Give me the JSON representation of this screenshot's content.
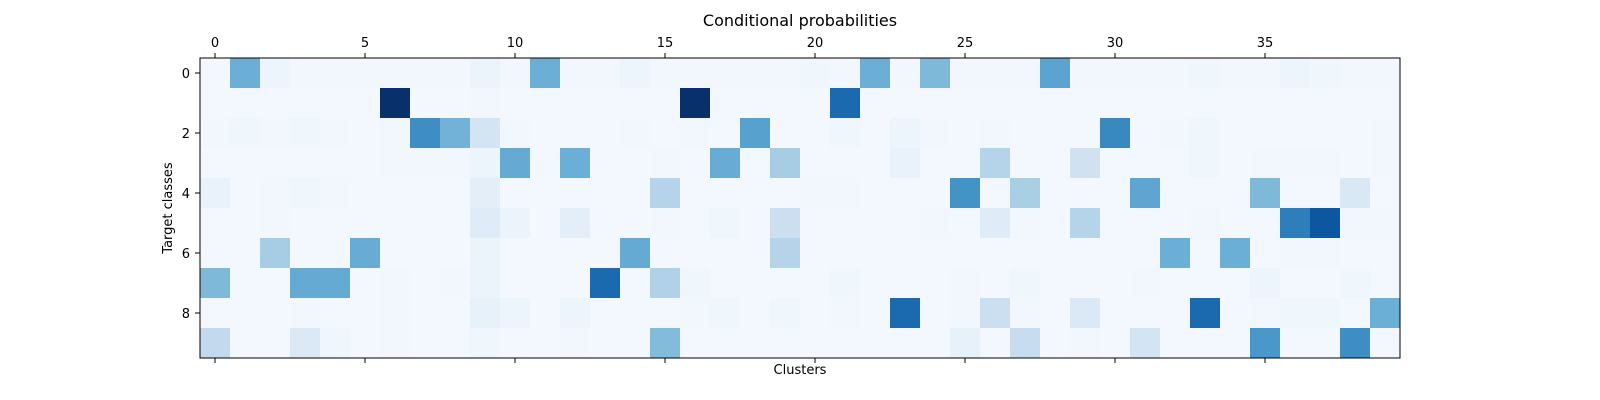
{
  "chart_data": {
    "type": "heatmap",
    "title": "Conditional probabilities",
    "xlabel": "Clusters",
    "ylabel": "Target classes",
    "x_ticks": [
      0,
      5,
      10,
      15,
      20,
      25,
      30,
      35
    ],
    "y_ticks": [
      0,
      2,
      4,
      6,
      8
    ],
    "n_clusters": 40,
    "n_classes": 10,
    "colormap": "Blues",
    "vmax": 1.0,
    "values": [
      [
        0.02,
        0.5,
        0.05,
        0.03,
        0.03,
        0.03,
        0.03,
        0.03,
        0.03,
        0.06,
        0.03,
        0.5,
        0.03,
        0.03,
        0.05,
        0.03,
        0.03,
        0.03,
        0.03,
        0.03,
        0.04,
        0.03,
        0.5,
        0.03,
        0.45,
        0.03,
        0.03,
        0.03,
        0.55,
        0.03,
        0.03,
        0.03,
        0.03,
        0.04,
        0.03,
        0.03,
        0.05,
        0.04,
        0.03,
        0.03
      ],
      [
        0.02,
        0.02,
        0.02,
        0.02,
        0.02,
        0.02,
        1.0,
        0.02,
        0.02,
        0.03,
        0.02,
        0.02,
        0.02,
        0.02,
        0.02,
        0.02,
        1.0,
        0.02,
        0.02,
        0.02,
        0.02,
        0.78,
        0.02,
        0.02,
        0.02,
        0.02,
        0.02,
        0.02,
        0.02,
        0.02,
        0.02,
        0.02,
        0.02,
        0.02,
        0.02,
        0.02,
        0.02,
        0.02,
        0.02,
        0.02
      ],
      [
        0.03,
        0.04,
        0.03,
        0.04,
        0.03,
        0.02,
        0.03,
        0.64,
        0.48,
        0.18,
        0.03,
        0.02,
        0.02,
        0.02,
        0.03,
        0.02,
        0.03,
        0.02,
        0.56,
        0.02,
        0.02,
        0.04,
        0.02,
        0.05,
        0.03,
        0.02,
        0.03,
        0.02,
        0.02,
        0.02,
        0.66,
        0.02,
        0.03,
        0.04,
        0.02,
        0.02,
        0.02,
        0.02,
        0.02,
        0.03
      ],
      [
        0.02,
        0.02,
        0.02,
        0.02,
        0.02,
        0.02,
        0.03,
        0.03,
        0.03,
        0.05,
        0.52,
        0.02,
        0.5,
        0.02,
        0.02,
        0.03,
        0.02,
        0.51,
        0.02,
        0.35,
        0.02,
        0.02,
        0.02,
        0.07,
        0.02,
        0.02,
        0.3,
        0.02,
        0.02,
        0.2,
        0.02,
        0.02,
        0.02,
        0.04,
        0.02,
        0.03,
        0.03,
        0.03,
        0.02,
        0.03
      ],
      [
        0.07,
        0.02,
        0.03,
        0.04,
        0.03,
        0.02,
        0.02,
        0.02,
        0.02,
        0.1,
        0.02,
        0.02,
        0.02,
        0.02,
        0.02,
        0.3,
        0.02,
        0.02,
        0.02,
        0.02,
        0.03,
        0.03,
        0.02,
        0.02,
        0.02,
        0.62,
        0.02,
        0.34,
        0.02,
        0.02,
        0.02,
        0.54,
        0.02,
        0.02,
        0.02,
        0.45,
        0.02,
        0.02,
        0.15,
        0.02
      ],
      [
        0.02,
        0.02,
        0.03,
        0.02,
        0.02,
        0.02,
        0.02,
        0.02,
        0.02,
        0.12,
        0.06,
        0.02,
        0.1,
        0.02,
        0.02,
        0.03,
        0.02,
        0.04,
        0.02,
        0.22,
        0.02,
        0.02,
        0.02,
        0.02,
        0.03,
        0.02,
        0.12,
        0.03,
        0.02,
        0.3,
        0.02,
        0.02,
        0.02,
        0.03,
        0.02,
        0.02,
        0.7,
        0.85,
        0.03,
        0.03
      ],
      [
        0.02,
        0.02,
        0.35,
        0.02,
        0.02,
        0.51,
        0.02,
        0.02,
        0.02,
        0.06,
        0.02,
        0.02,
        0.02,
        0.02,
        0.52,
        0.02,
        0.02,
        0.02,
        0.02,
        0.3,
        0.02,
        0.02,
        0.02,
        0.02,
        0.02,
        0.02,
        0.02,
        0.02,
        0.02,
        0.02,
        0.02,
        0.02,
        0.5,
        0.02,
        0.5,
        0.02,
        0.03,
        0.03,
        0.02,
        0.02
      ],
      [
        0.45,
        0.02,
        0.02,
        0.52,
        0.52,
        0.02,
        0.03,
        0.02,
        0.03,
        0.06,
        0.02,
        0.02,
        0.02,
        0.78,
        0.02,
        0.32,
        0.04,
        0.02,
        0.02,
        0.02,
        0.02,
        0.04,
        0.02,
        0.02,
        0.02,
        0.03,
        0.02,
        0.04,
        0.02,
        0.02,
        0.02,
        0.03,
        0.02,
        0.02,
        0.02,
        0.05,
        0.02,
        0.02,
        0.04,
        0.02
      ],
      [
        0.02,
        0.02,
        0.02,
        0.03,
        0.02,
        0.02,
        0.03,
        0.02,
        0.02,
        0.08,
        0.05,
        0.02,
        0.05,
        0.02,
        0.02,
        0.02,
        0.03,
        0.04,
        0.02,
        0.04,
        0.02,
        0.03,
        0.02,
        0.78,
        0.02,
        0.03,
        0.22,
        0.03,
        0.02,
        0.14,
        0.02,
        0.02,
        0.02,
        0.78,
        0.02,
        0.03,
        0.04,
        0.04,
        0.02,
        0.5
      ],
      [
        0.26,
        0.02,
        0.02,
        0.14,
        0.04,
        0.02,
        0.03,
        0.02,
        0.02,
        0.04,
        0.02,
        0.02,
        0.03,
        0.02,
        0.02,
        0.44,
        0.02,
        0.02,
        0.02,
        0.02,
        0.02,
        0.02,
        0.02,
        0.02,
        0.02,
        0.08,
        0.02,
        0.24,
        0.02,
        0.03,
        0.02,
        0.18,
        0.02,
        0.02,
        0.02,
        0.6,
        0.02,
        0.02,
        0.64,
        0.02
      ]
    ]
  }
}
